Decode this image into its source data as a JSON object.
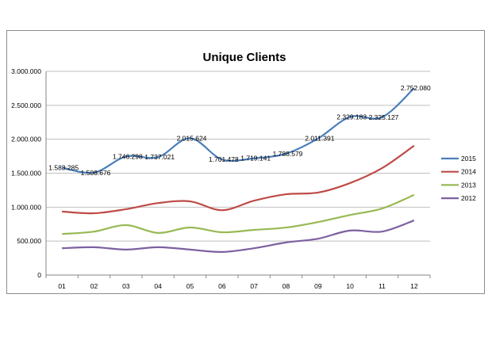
{
  "chart_data": {
    "type": "line",
    "title": "Unique Clients",
    "categories": [
      "01",
      "02",
      "03",
      "04",
      "05",
      "06",
      "07",
      "08",
      "09",
      "10",
      "11",
      "12"
    ],
    "ylim": [
      0,
      3000000
    ],
    "yticks": [
      0,
      500000,
      1000000,
      1500000,
      2000000,
      2500000,
      3000000
    ],
    "ytick_labels": [
      "0",
      "500.000",
      "1.000.000",
      "1.500.000",
      "2.000.000",
      "2.500.000",
      "3.000.000"
    ],
    "grid": true,
    "legend": "right",
    "series": [
      {
        "name": "2015",
        "color": "#4a7ebb",
        "values": [
          1583285,
          1508676,
          1746298,
          1737021,
          2015624,
          1701478,
          1719141,
          1788579,
          2011391,
          2329183,
          2325127,
          2752080
        ],
        "labels": [
          "1.583.285",
          "1.508.676",
          "1.746.298",
          "1.737.021",
          "2.015.624",
          "1.701.478",
          "1.719.141",
          "1.788.579",
          "2.011.391",
          "2.329.183",
          "2.325.127",
          "2.752.080"
        ]
      },
      {
        "name": "2014",
        "color": "#be4b48",
        "values": [
          935000,
          910000,
          970000,
          1060000,
          1085000,
          955000,
          1095000,
          1190000,
          1215000,
          1355000,
          1575000,
          1905000
        ]
      },
      {
        "name": "2013",
        "color": "#98b954",
        "values": [
          605000,
          640000,
          735000,
          620000,
          700000,
          630000,
          665000,
          700000,
          780000,
          885000,
          980000,
          1180000
        ]
      },
      {
        "name": "2012",
        "color": "#7d60a0",
        "values": [
          395000,
          410000,
          375000,
          410000,
          375000,
          340000,
          395000,
          480000,
          535000,
          655000,
          640000,
          805000
        ]
      }
    ]
  }
}
